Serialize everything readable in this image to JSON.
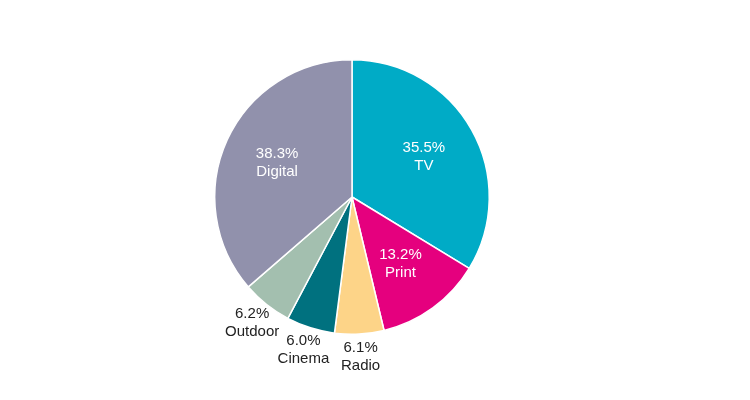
{
  "chart_data": {
    "type": "pie",
    "categories": [
      "TV",
      "Print",
      "Radio",
      "Cinema",
      "Outdoor",
      "Digital"
    ],
    "values": [
      35.5,
      13.2,
      6.1,
      6.0,
      6.2,
      38.3
    ],
    "value_labels": [
      "35.5%",
      "13.2%",
      "6.1%",
      "6.0%",
      "6.2%",
      "38.3%"
    ],
    "colors": [
      "#00abc6",
      "#e5007e",
      "#fdd488",
      "#00717f",
      "#a3bfaf",
      "#9191ac"
    ],
    "data_labels": true
  }
}
